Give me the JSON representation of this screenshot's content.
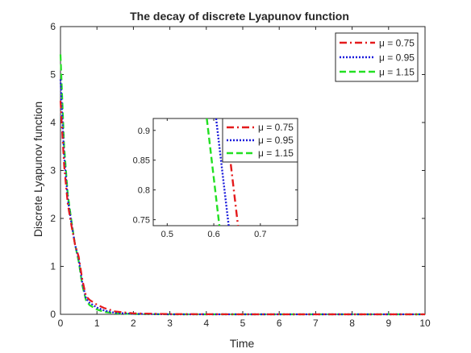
{
  "chart_data": {
    "type": "line",
    "title": "The decay of discrete Lyapunov function",
    "xlabel": "Time",
    "ylabel": "Discrete Lyapunov function",
    "xlim": [
      0,
      10
    ],
    "ylim": [
      0,
      6
    ],
    "xticks": [
      "0",
      "1",
      "2",
      "3",
      "4",
      "5",
      "6",
      "7",
      "8",
      "9",
      "10"
    ],
    "yticks": [
      "0",
      "1",
      "2",
      "3",
      "4",
      "5",
      "6"
    ],
    "grid": false,
    "legend_position": "top-right",
    "series": [
      {
        "name": "μ = 0.75",
        "color": "#e41a1c",
        "style": "dash-dot",
        "x": [
          0,
          0.1,
          0.2,
          0.3,
          0.4,
          0.5,
          0.6,
          0.7,
          0.8,
          1.0,
          1.2,
          1.5,
          2.0,
          3.0,
          5.0,
          10.0
        ],
        "y": [
          4.45,
          3.1,
          2.3,
          1.85,
          1.45,
          1.2,
          0.72,
          0.38,
          0.3,
          0.2,
          0.13,
          0.06,
          0.02,
          0.005,
          0.0,
          0.0
        ]
      },
      {
        "name": "μ = 0.95",
        "color": "#1a1adb",
        "style": "dotted",
        "x": [
          0,
          0.1,
          0.2,
          0.3,
          0.4,
          0.5,
          0.6,
          0.7,
          0.8,
          1.0,
          1.2,
          1.5,
          2.0,
          3.0,
          5.0,
          10.0
        ],
        "y": [
          4.9,
          3.3,
          2.4,
          1.9,
          1.45,
          1.15,
          0.65,
          0.33,
          0.24,
          0.14,
          0.08,
          0.03,
          0.01,
          0.0,
          0.0,
          0.0
        ]
      },
      {
        "name": "μ = 1.15",
        "color": "#22e022",
        "style": "dashed",
        "x": [
          0,
          0.1,
          0.2,
          0.3,
          0.4,
          0.5,
          0.6,
          0.7,
          0.8,
          1.0,
          1.2,
          1.5,
          2.0,
          3.0,
          5.0,
          10.0
        ],
        "y": [
          5.42,
          3.5,
          2.5,
          1.95,
          1.45,
          1.1,
          0.6,
          0.29,
          0.19,
          0.1,
          0.05,
          0.02,
          0.005,
          0.0,
          0.0,
          0.0
        ]
      }
    ],
    "inset": {
      "xlim": [
        0.47,
        0.78
      ],
      "ylim": [
        0.74,
        0.92
      ],
      "xticks": [
        "0.5",
        "0.6",
        "0.7"
      ],
      "yticks": [
        "0.75",
        "0.8",
        "0.85",
        "0.9"
      ],
      "xtick_values": [
        0.5,
        0.6,
        0.7
      ],
      "ytick_values": [
        0.75,
        0.8,
        0.85,
        0.9
      ],
      "legend_position": "top-right",
      "lines": [
        {
          "series": 0,
          "x": [
            0.625,
            0.652
          ],
          "y": [
            0.92,
            0.74
          ]
        },
        {
          "series": 1,
          "x": [
            0.605,
            0.632
          ],
          "y": [
            0.92,
            0.74
          ]
        },
        {
          "series": 2,
          "x": [
            0.585,
            0.612
          ],
          "y": [
            0.92,
            0.74
          ]
        }
      ]
    }
  }
}
